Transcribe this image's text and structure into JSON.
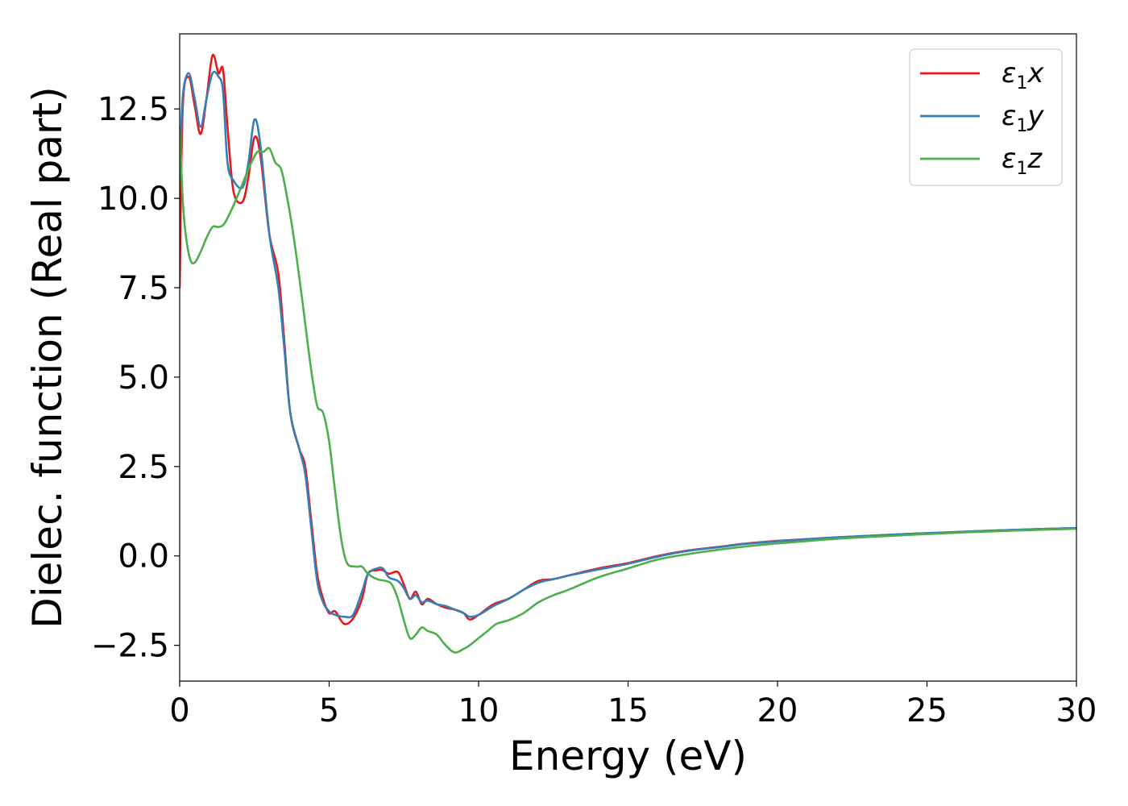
{
  "chart_data": {
    "type": "line",
    "xlabel": "Energy (eV)",
    "ylabel": "Dielec. function (Real part)",
    "xlim": [
      0,
      30
    ],
    "ylim": [
      -3.5,
      14.6
    ],
    "xticks": [
      "0",
      "5",
      "10",
      "15",
      "20",
      "25",
      "30"
    ],
    "xtick_values": [
      0,
      5,
      10,
      15,
      20,
      25,
      30
    ],
    "yticks": [
      "−2.5",
      "0.0",
      "2.5",
      "5.0",
      "7.5",
      "10.0",
      "12.5"
    ],
    "ytick_values": [
      -2.5,
      0,
      2.5,
      5,
      7.5,
      10,
      12.5
    ],
    "grid": false,
    "legend_position": "top-right",
    "series": [
      {
        "name": "ε1x",
        "symbol": "ε",
        "subscript": "1",
        "variable": "x",
        "color": "#e41a1c",
        "points": [
          [
            0.0,
            7.5
          ],
          [
            0.1,
            12.5
          ],
          [
            0.3,
            13.4
          ],
          [
            0.5,
            12.6
          ],
          [
            0.7,
            11.8
          ],
          [
            0.9,
            12.8
          ],
          [
            1.1,
            14.0
          ],
          [
            1.3,
            13.5
          ],
          [
            1.45,
            13.6
          ],
          [
            1.6,
            12.0
          ],
          [
            1.8,
            10.2
          ],
          [
            2.1,
            9.9
          ],
          [
            2.3,
            10.6
          ],
          [
            2.5,
            11.7
          ],
          [
            2.7,
            11.2
          ],
          [
            3.0,
            9.0
          ],
          [
            3.3,
            7.9
          ],
          [
            3.5,
            6.0
          ],
          [
            3.7,
            4.0
          ],
          [
            4.0,
            3.0
          ],
          [
            4.2,
            2.5
          ],
          [
            4.4,
            1.0
          ],
          [
            4.6,
            -0.5
          ],
          [
            4.8,
            -1.2
          ],
          [
            5.0,
            -1.6
          ],
          [
            5.2,
            -1.55
          ],
          [
            5.5,
            -1.9
          ],
          [
            5.8,
            -1.75
          ],
          [
            6.1,
            -1.2
          ],
          [
            6.3,
            -0.5
          ],
          [
            6.6,
            -0.4
          ],
          [
            6.8,
            -0.4
          ],
          [
            7.0,
            -0.5
          ],
          [
            7.3,
            -0.45
          ],
          [
            7.5,
            -0.8
          ],
          [
            7.7,
            -1.2
          ],
          [
            7.9,
            -1.0
          ],
          [
            8.1,
            -1.35
          ],
          [
            8.3,
            -1.2
          ],
          [
            8.6,
            -1.35
          ],
          [
            8.9,
            -1.45
          ],
          [
            9.2,
            -1.5
          ],
          [
            9.5,
            -1.6
          ],
          [
            9.7,
            -1.78
          ],
          [
            10.0,
            -1.65
          ],
          [
            10.5,
            -1.35
          ],
          [
            11.0,
            -1.2
          ],
          [
            11.5,
            -0.95
          ],
          [
            12.0,
            -0.7
          ],
          [
            12.5,
            -0.65
          ],
          [
            13.0,
            -0.55
          ],
          [
            14.0,
            -0.35
          ],
          [
            15.0,
            -0.2
          ],
          [
            16.0,
            0.0
          ],
          [
            17.0,
            0.15
          ],
          [
            18.0,
            0.25
          ],
          [
            19.0,
            0.35
          ],
          [
            20.0,
            0.42
          ],
          [
            22.0,
            0.52
          ],
          [
            24.0,
            0.6
          ],
          [
            26.0,
            0.67
          ],
          [
            28.0,
            0.73
          ],
          [
            30.0,
            0.78
          ]
        ]
      },
      {
        "name": "ε1y",
        "symbol": "ε",
        "subscript": "1",
        "variable": "y",
        "color": "#377eb8",
        "points": [
          [
            0.0,
            10.5
          ],
          [
            0.1,
            12.8
          ],
          [
            0.3,
            13.5
          ],
          [
            0.5,
            12.8
          ],
          [
            0.7,
            12.0
          ],
          [
            0.9,
            12.8
          ],
          [
            1.1,
            13.5
          ],
          [
            1.3,
            13.4
          ],
          [
            1.45,
            13.0
          ],
          [
            1.6,
            11.0
          ],
          [
            1.8,
            10.5
          ],
          [
            2.1,
            10.3
          ],
          [
            2.3,
            11.0
          ],
          [
            2.5,
            12.2
          ],
          [
            2.7,
            11.5
          ],
          [
            3.0,
            9.0
          ],
          [
            3.3,
            7.5
          ],
          [
            3.5,
            5.8
          ],
          [
            3.7,
            4.0
          ],
          [
            4.0,
            3.0
          ],
          [
            4.2,
            2.3
          ],
          [
            4.4,
            0.8
          ],
          [
            4.6,
            -0.7
          ],
          [
            4.8,
            -1.3
          ],
          [
            5.0,
            -1.55
          ],
          [
            5.2,
            -1.65
          ],
          [
            5.5,
            -1.7
          ],
          [
            5.8,
            -1.65
          ],
          [
            6.1,
            -1.0
          ],
          [
            6.3,
            -0.5
          ],
          [
            6.6,
            -0.35
          ],
          [
            6.8,
            -0.35
          ],
          [
            7.0,
            -0.6
          ],
          [
            7.3,
            -0.7
          ],
          [
            7.5,
            -0.9
          ],
          [
            7.7,
            -1.2
          ],
          [
            7.9,
            -1.1
          ],
          [
            8.1,
            -1.3
          ],
          [
            8.3,
            -1.25
          ],
          [
            8.6,
            -1.35
          ],
          [
            8.9,
            -1.4
          ],
          [
            9.2,
            -1.5
          ],
          [
            9.5,
            -1.6
          ],
          [
            9.7,
            -1.7
          ],
          [
            10.0,
            -1.65
          ],
          [
            10.5,
            -1.4
          ],
          [
            11.0,
            -1.2
          ],
          [
            11.5,
            -0.95
          ],
          [
            12.0,
            -0.75
          ],
          [
            12.5,
            -0.65
          ],
          [
            13.0,
            -0.55
          ],
          [
            14.0,
            -0.38
          ],
          [
            15.0,
            -0.22
          ],
          [
            16.0,
            -0.02
          ],
          [
            17.0,
            0.14
          ],
          [
            18.0,
            0.24
          ],
          [
            19.0,
            0.34
          ],
          [
            20.0,
            0.41
          ],
          [
            22.0,
            0.52
          ],
          [
            24.0,
            0.6
          ],
          [
            26.0,
            0.67
          ],
          [
            28.0,
            0.73
          ],
          [
            30.0,
            0.78
          ]
        ]
      },
      {
        "name": "ε1z",
        "symbol": "ε",
        "subscript": "1",
        "variable": "z",
        "color": "#4daf4a",
        "points": [
          [
            0.0,
            12.0
          ],
          [
            0.1,
            10.0
          ],
          [
            0.2,
            9.0
          ],
          [
            0.35,
            8.3
          ],
          [
            0.5,
            8.2
          ],
          [
            0.7,
            8.5
          ],
          [
            0.9,
            8.9
          ],
          [
            1.1,
            9.2
          ],
          [
            1.3,
            9.2
          ],
          [
            1.5,
            9.3
          ],
          [
            1.8,
            9.8
          ],
          [
            2.1,
            10.4
          ],
          [
            2.4,
            11.0
          ],
          [
            2.6,
            11.3
          ],
          [
            2.8,
            11.3
          ],
          [
            3.0,
            11.4
          ],
          [
            3.2,
            11.0
          ],
          [
            3.4,
            10.8
          ],
          [
            3.6,
            10.0
          ],
          [
            3.8,
            9.0
          ],
          [
            4.0,
            7.8
          ],
          [
            4.2,
            6.5
          ],
          [
            4.4,
            5.2
          ],
          [
            4.6,
            4.2
          ],
          [
            4.8,
            4.0
          ],
          [
            5.0,
            3.2
          ],
          [
            5.2,
            1.8
          ],
          [
            5.4,
            0.5
          ],
          [
            5.6,
            -0.2
          ],
          [
            5.9,
            -0.3
          ],
          [
            6.1,
            -0.3
          ],
          [
            6.3,
            -0.5
          ],
          [
            6.6,
            -0.65
          ],
          [
            6.9,
            -0.7
          ],
          [
            7.1,
            -0.8
          ],
          [
            7.3,
            -1.2
          ],
          [
            7.5,
            -1.8
          ],
          [
            7.7,
            -2.3
          ],
          [
            7.9,
            -2.2
          ],
          [
            8.1,
            -2.0
          ],
          [
            8.3,
            -2.1
          ],
          [
            8.6,
            -2.2
          ],
          [
            8.9,
            -2.5
          ],
          [
            9.2,
            -2.7
          ],
          [
            9.5,
            -2.6
          ],
          [
            9.7,
            -2.5
          ],
          [
            10.0,
            -2.3
          ],
          [
            10.3,
            -2.1
          ],
          [
            10.6,
            -1.9
          ],
          [
            11.0,
            -1.8
          ],
          [
            11.5,
            -1.6
          ],
          [
            12.0,
            -1.3
          ],
          [
            12.5,
            -1.1
          ],
          [
            13.0,
            -0.95
          ],
          [
            14.0,
            -0.6
          ],
          [
            15.0,
            -0.35
          ],
          [
            16.0,
            -0.1
          ],
          [
            17.0,
            0.05
          ],
          [
            18.0,
            0.17
          ],
          [
            19.0,
            0.27
          ],
          [
            20.0,
            0.35
          ],
          [
            22.0,
            0.48
          ],
          [
            24.0,
            0.57
          ],
          [
            26.0,
            0.65
          ],
          [
            28.0,
            0.71
          ],
          [
            30.0,
            0.76
          ]
        ]
      }
    ]
  }
}
